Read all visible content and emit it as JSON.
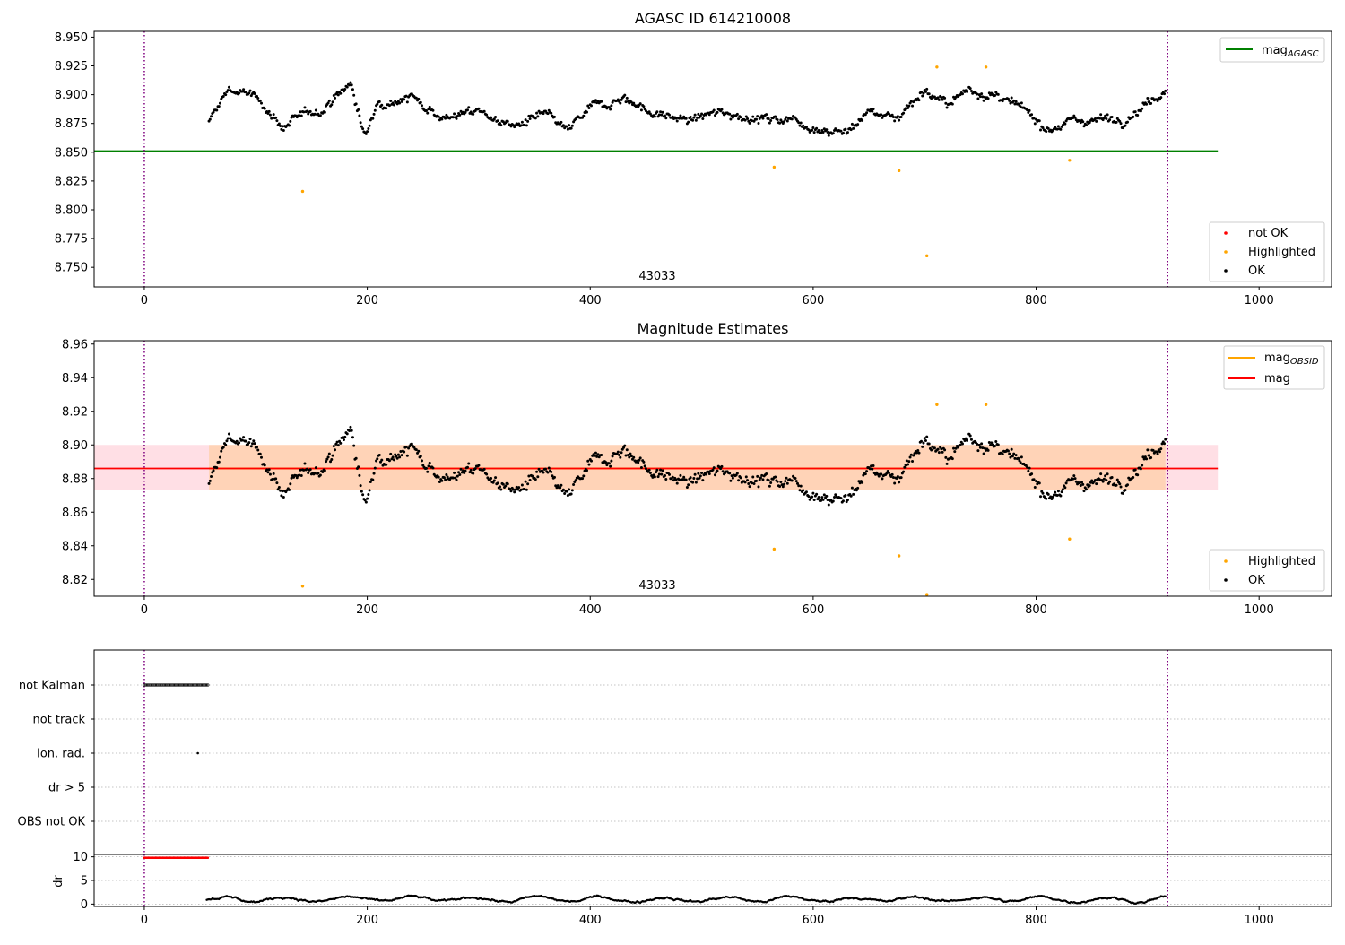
{
  "chart_data": [
    {
      "type": "scatter",
      "title": "AGASC ID 614210008",
      "xlim": [
        -45,
        1065
      ],
      "ylim": [
        8.733,
        8.955
      ],
      "x_ticks": [
        0,
        200,
        400,
        600,
        800,
        1000
      ],
      "y_ticks": [
        8.75,
        8.775,
        8.8,
        8.825,
        8.85,
        8.875,
        8.9,
        8.925,
        8.95
      ],
      "y_tick_labels": [
        "8.750",
        "8.775",
        "8.800",
        "8.825",
        "8.850",
        "8.875",
        "8.900",
        "8.925",
        "8.950"
      ],
      "annotation": {
        "text": "43033",
        "x": 460,
        "y": 8.741
      },
      "vlines": [
        0,
        918
      ],
      "hline": {
        "y": 8.851,
        "x_range": [
          -45,
          963
        ],
        "color": "#008000",
        "legend_main": "mag",
        "legend_sub": "AGASC"
      },
      "legend_points": [
        "not OK",
        "Highlighted",
        "OK"
      ],
      "ok_points": {
        "x_start": 58,
        "x_end": 916,
        "base_segments": [
          [
            58,
            8.875
          ],
          [
            75,
            8.905
          ],
          [
            95,
            8.9
          ],
          [
            110,
            8.888
          ],
          [
            125,
            8.872
          ],
          [
            140,
            8.88
          ],
          [
            160,
            8.888
          ],
          [
            185,
            8.91
          ],
          [
            198,
            8.862
          ],
          [
            210,
            8.895
          ],
          [
            240,
            8.898
          ],
          [
            270,
            8.88
          ],
          [
            300,
            8.886
          ],
          [
            330,
            8.872
          ],
          [
            360,
            8.882
          ],
          [
            380,
            8.868
          ],
          [
            400,
            8.888
          ],
          [
            430,
            8.898
          ],
          [
            460,
            8.882
          ],
          [
            490,
            8.878
          ],
          [
            520,
            8.885
          ],
          [
            560,
            8.878
          ],
          [
            580,
            8.88
          ],
          [
            600,
            8.872
          ],
          [
            630,
            8.867
          ],
          [
            650,
            8.886
          ],
          [
            675,
            8.88
          ],
          [
            700,
            8.905
          ],
          [
            720,
            8.89
          ],
          [
            740,
            8.905
          ],
          [
            760,
            8.9
          ],
          [
            790,
            8.885
          ],
          [
            810,
            8.872
          ],
          [
            840,
            8.878
          ],
          [
            880,
            8.88
          ],
          [
            916,
            8.905
          ]
        ]
      },
      "highlighted_points": [
        [
          142,
          8.816
        ],
        [
          565,
          8.837
        ],
        [
          677,
          8.834
        ],
        [
          702,
          8.76
        ],
        [
          711,
          8.924
        ],
        [
          755,
          8.924
        ],
        [
          830,
          8.843
        ]
      ]
    },
    {
      "type": "scatter",
      "title": "Magnitude Estimates",
      "xlim": [
        -45,
        1065
      ],
      "ylim": [
        8.81,
        8.962
      ],
      "x_ticks": [
        0,
        200,
        400,
        600,
        800,
        1000
      ],
      "y_ticks": [
        8.82,
        8.84,
        8.86,
        8.88,
        8.9,
        8.92,
        8.94,
        8.96
      ],
      "y_tick_labels": [
        "8.82",
        "8.84",
        "8.86",
        "8.88",
        "8.90",
        "8.92",
        "8.94",
        "8.96"
      ],
      "annotation": {
        "text": "43033",
        "x": 460,
        "y": 8.813
      },
      "vlines": [
        0,
        918
      ],
      "band": {
        "y_range": [
          8.873,
          8.9
        ],
        "x_range": [
          -45,
          963
        ]
      },
      "mag_line": {
        "y": 8.886,
        "color": "#ff0000",
        "label": "mag"
      },
      "obsid_line": {
        "y": 8.886,
        "x_range": [
          58,
          916
        ],
        "color": "#ffa500",
        "legend_main": "mag",
        "legend_sub": "OBSID"
      },
      "legend_points": [
        "Highlighted",
        "OK"
      ],
      "highlighted_points": [
        [
          142,
          8.816
        ],
        [
          565,
          8.838
        ],
        [
          677,
          8.834
        ],
        [
          702,
          8.811
        ],
        [
          711,
          8.924
        ],
        [
          755,
          8.924
        ],
        [
          830,
          8.844
        ]
      ]
    },
    {
      "type": "scatter",
      "title": "",
      "xlim": [
        -45,
        1065
      ],
      "category_labels": [
        "not Kalman",
        "not track",
        "Ion. rad.",
        "dr > 5",
        "OBS not OK"
      ],
      "vlines": [
        0,
        918
      ],
      "not_kalman_x_range": [
        0,
        57
      ],
      "ion_rad_x": 48
    },
    {
      "type": "scatter",
      "title": "",
      "ylabel": "dr",
      "xlim": [
        -45,
        1065
      ],
      "ylim": [
        -0.5,
        10.5
      ],
      "y_ticks": [
        0,
        5,
        10
      ],
      "y_tick_labels": [
        "0",
        "5",
        "10"
      ],
      "x_ticks": [
        0,
        200,
        400,
        600,
        800,
        1000
      ],
      "vlines": [
        0,
        918
      ],
      "red_points": {
        "x_range": [
          0,
          57
        ],
        "y": 9.8
      },
      "dr_points": {
        "x_range": [
          56,
          916
        ],
        "level": 1.0
      }
    }
  ]
}
